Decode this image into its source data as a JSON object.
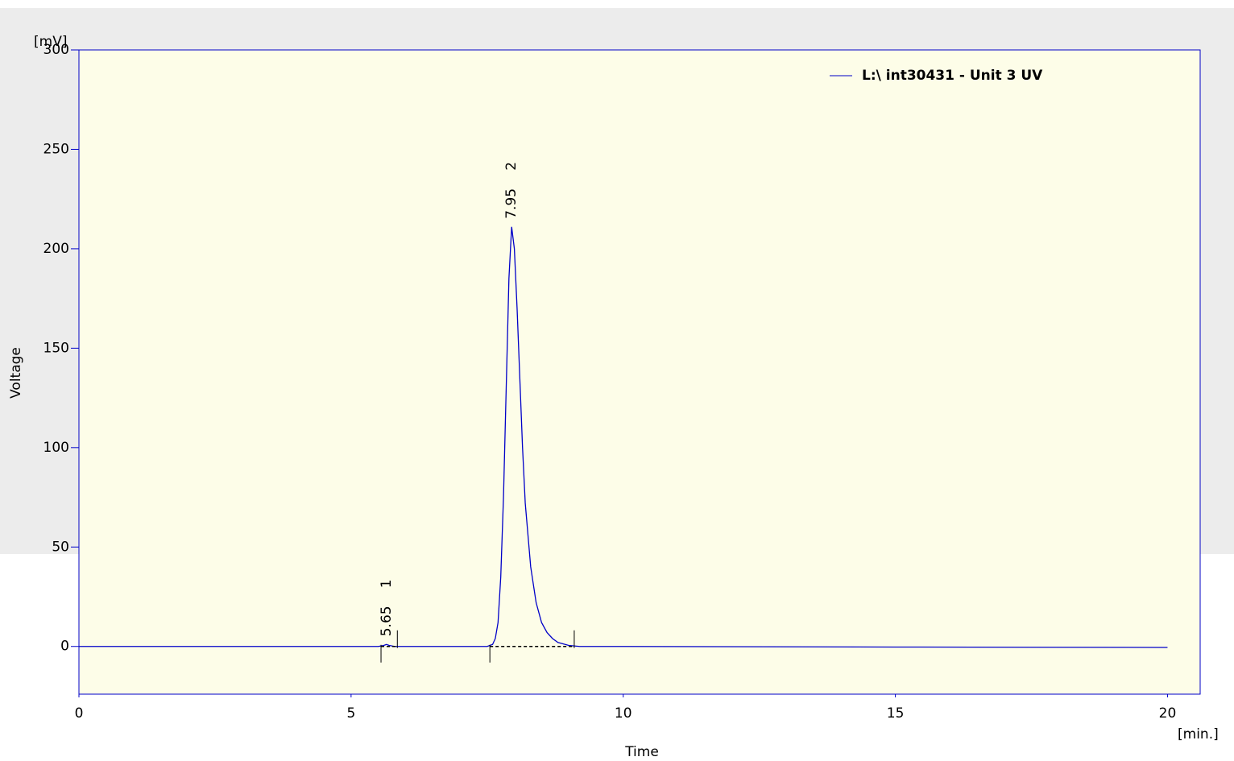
{
  "chart_data": {
    "type": "line",
    "y_axis_label": "Voltage",
    "y_unit": "[mV]",
    "x_axis_label": "Time",
    "x_unit": "[min.]",
    "x": [
      0,
      2,
      4,
      5.5,
      5.6,
      5.65,
      5.7,
      5.8,
      6,
      7,
      7.5,
      7.6,
      7.65,
      7.7,
      7.75,
      7.8,
      7.85,
      7.9,
      7.95,
      8.0,
      8.05,
      8.1,
      8.15,
      8.2,
      8.3,
      8.4,
      8.5,
      8.6,
      8.7,
      8.8,
      9.0,
      9.2,
      10,
      15,
      20
    ],
    "series": [
      {
        "name": "L:\\ int30431 - Unit 3 UV",
        "color": "#0000c8",
        "values": [
          0,
          0,
          0,
          0,
          0.5,
          1,
          0.5,
          0,
          0,
          0,
          0,
          1,
          4,
          12,
          35,
          75,
          130,
          185,
          211,
          200,
          170,
          135,
          100,
          72,
          40,
          22,
          12,
          7,
          4,
          2,
          0.5,
          0,
          0,
          -0.3,
          -0.5
        ]
      }
    ],
    "peaks": [
      {
        "number": 1,
        "rt": 5.65,
        "start": 5.55,
        "end": 5.85
      },
      {
        "number": 2,
        "rt": 7.95,
        "start": 7.55,
        "end": 9.1
      }
    ],
    "xlim": [
      0,
      20.6
    ],
    "xticks": [
      0,
      5,
      10,
      15,
      20
    ],
    "ylim": [
      -24,
      300
    ],
    "yticks": [
      0,
      50,
      100,
      150,
      200,
      250,
      300
    ],
    "legend": "top-right"
  }
}
